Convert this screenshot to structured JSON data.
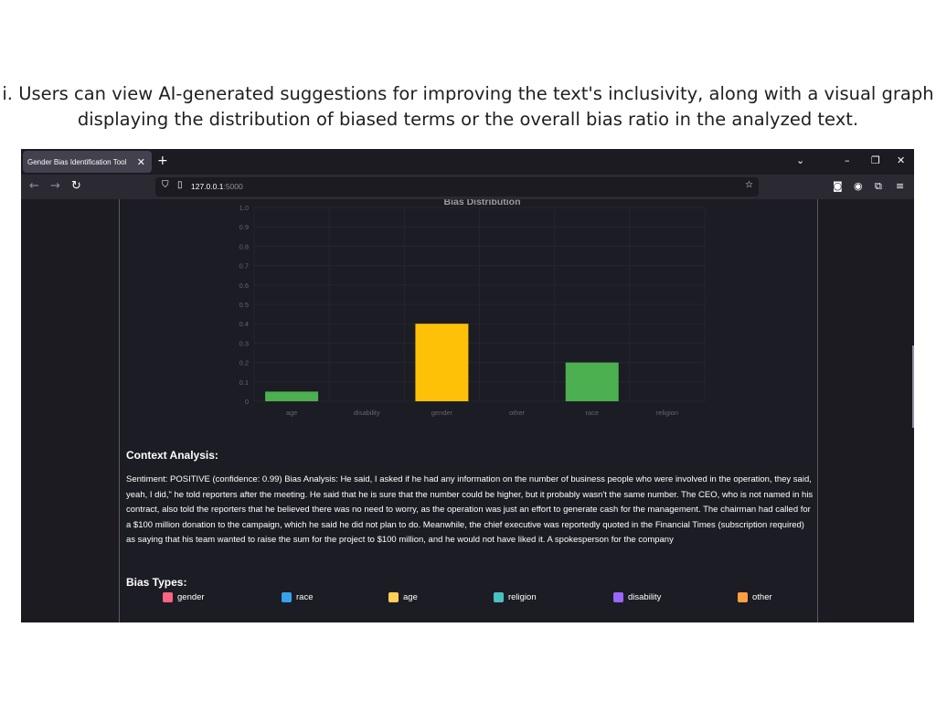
{
  "caption": {
    "line1": "i. Users can view AI-generated suggestions for improving the text's inclusivity, along with a visual graph",
    "line2": "displaying the distribution of biased terms or the overall bias ratio in the analyzed text."
  },
  "browser": {
    "tab_title": "Gender Bias Identification Tool",
    "url_host": "127.0.0.1",
    "url_port": ":5000"
  },
  "chart_data": {
    "type": "bar",
    "title": "Bias Distribution",
    "categories": [
      "age",
      "disability",
      "gender",
      "other",
      "race",
      "religion"
    ],
    "values": [
      0.05,
      0,
      0.4,
      0,
      0.2,
      0
    ],
    "bar_colors": [
      "#4caf50",
      "#4caf50",
      "#ffc107",
      "#4caf50",
      "#4caf50",
      "#4caf50"
    ],
    "ylim": [
      0,
      1.0
    ],
    "yticks": [
      "1.0",
      "0.9",
      "0.8",
      "0.7",
      "0.6",
      "0.5",
      "0.4",
      "0.3",
      "0.2",
      "0.1",
      "0"
    ],
    "grid": true
  },
  "context": {
    "heading": "Context Analysis:",
    "text": "Sentiment: POSITIVE (confidence: 0.99) Bias Analysis: He said, I asked if he had any information on the number of business people who were involved in the operation, they said, yeah, I did,\" he told reporters after the meeting. He said that he is sure that the number could be higher, but it probably wasn't the same number. The CEO, who is not named in his contract, also told the reporters that he believed there was no need to worry, as the operation was just an effort to generate cash for the management. The chairman had called for a $100 million donation to the campaign, which he said he did not plan to do. Meanwhile, the chief executive was reportedly quoted in the Financial Times (subscription required) as saying that his team wanted to raise the sum for the project to $100 million, and he would not have liked it. A spokesperson for the company"
  },
  "bias_types": {
    "heading": "Bias Types:",
    "items": [
      {
        "label": "gender",
        "color": "#ff6384"
      },
      {
        "label": "race",
        "color": "#36a2eb"
      },
      {
        "label": "age",
        "color": "#ffce56"
      },
      {
        "label": "religion",
        "color": "#4bc0c0"
      },
      {
        "label": "disability",
        "color": "#9966ff"
      },
      {
        "label": "other",
        "color": "#ff9f40"
      }
    ]
  }
}
